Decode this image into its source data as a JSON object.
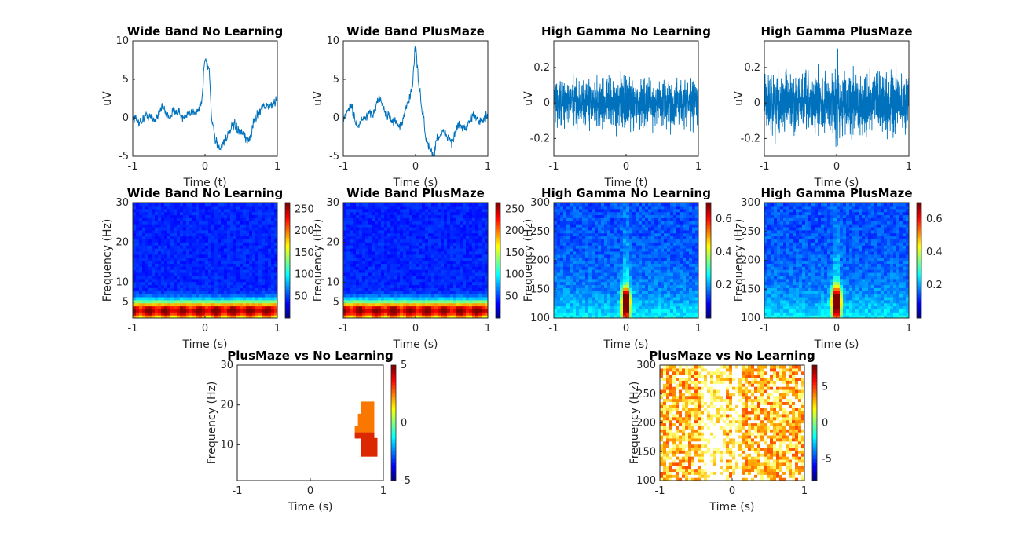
{
  "figure": {
    "panels": [
      {
        "title": "Wide Band No Learning",
        "xlabel": "Time (t)",
        "ylabel": "uV"
      },
      {
        "title": "Wide Band PlusMaze",
        "xlabel": "Time (s)",
        "ylabel": "uV"
      },
      {
        "title": "High Gamma No Learning",
        "xlabel": "Time (t)",
        "ylabel": "uV"
      },
      {
        "title": "High Gamma PlusMaze",
        "xlabel": "Time (s)",
        "ylabel": "uV"
      },
      {
        "title": "Wide Band No Learning",
        "xlabel": "Time (s)",
        "ylabel": "Frequency (Hz)"
      },
      {
        "title": "Wide Band PlusMaze",
        "xlabel": "Time (s)",
        "ylabel": "Frequency (Hz)"
      },
      {
        "title": "High Gamma No Learning",
        "xlabel": "Time (s)",
        "ylabel": "Frequency (Hz)"
      },
      {
        "title": "High Gamma PlusMaze",
        "xlabel": "Time (s)",
        "ylabel": "Frequency (Hz)"
      },
      {
        "title": "PlusMaze vs No Learning",
        "xlabel": "Time (s)",
        "ylabel": "Frequency (Hz)"
      },
      {
        "title": "PlusMaze vs No Learning",
        "xlabel": "Time (s)",
        "ylabel": "Frequency (Hz)"
      }
    ]
  },
  "chart_data": [
    {
      "type": "line",
      "title": "Wide Band No Learning",
      "xlabel": "Time (t)",
      "ylabel": "uV",
      "xlim": [
        -1,
        1
      ],
      "ylim": [
        -5,
        10
      ],
      "xticks": [
        "-1",
        "0",
        "1"
      ],
      "yticks": [
        "-5",
        "0",
        "5",
        "10"
      ],
      "color": "#0072BD",
      "x": [
        -1,
        -0.9,
        -0.8,
        -0.7,
        -0.6,
        -0.5,
        -0.4,
        -0.3,
        -0.2,
        -0.1,
        -0.05,
        0,
        0.05,
        0.1,
        0.15,
        0.2,
        0.3,
        0.4,
        0.5,
        0.6,
        0.7,
        0.8,
        0.9,
        1
      ],
      "values": [
        0,
        -0.5,
        0.3,
        -0.3,
        1.3,
        0.2,
        1,
        0,
        0.5,
        1,
        2,
        7.5,
        6.5,
        -0.5,
        -3,
        -4,
        -2.5,
        -1,
        -2,
        -3,
        0,
        1.5,
        1.5,
        2.2
      ]
    },
    {
      "type": "line",
      "title": "Wide Band PlusMaze",
      "xlabel": "Time (s)",
      "ylabel": "uV",
      "xlim": [
        -1,
        1
      ],
      "ylim": [
        -5,
        10
      ],
      "xticks": [
        "-1",
        "0",
        "1"
      ],
      "yticks": [
        "-5",
        "0",
        "5",
        "10"
      ],
      "color": "#0072BD",
      "x": [
        -1,
        -0.9,
        -0.8,
        -0.7,
        -0.6,
        -0.5,
        -0.4,
        -0.3,
        -0.2,
        -0.1,
        -0.05,
        0,
        0.05,
        0.1,
        0.15,
        0.2,
        0.25,
        0.3,
        0.4,
        0.5,
        0.6,
        0.7,
        0.8,
        0.9,
        1
      ],
      "values": [
        0,
        1.5,
        -1,
        0,
        0.5,
        2.5,
        0.5,
        -0.5,
        -1,
        2,
        4,
        9,
        4,
        0.5,
        -3,
        -4,
        -5,
        -2.5,
        -2,
        -3,
        -1,
        -1.5,
        0.5,
        -0.5,
        0.2
      ]
    },
    {
      "type": "line",
      "title": "High Gamma No Learning",
      "xlabel": "Time (t)",
      "ylabel": "uV",
      "xlim": [
        -1,
        1
      ],
      "ylim": [
        -0.3,
        0.35
      ],
      "xticks": [
        "-1",
        "0",
        "1"
      ],
      "yticks": [
        "-0.2",
        "0",
        "0.2"
      ],
      "color": "#0072BD",
      "noise_amplitude": 0.2
    },
    {
      "type": "line",
      "title": "High Gamma PlusMaze",
      "xlabel": "Time (s)",
      "ylabel": "uV",
      "xlim": [
        -1,
        1
      ],
      "ylim": [
        -0.3,
        0.35
      ],
      "xticks": [
        "-1",
        "0",
        "1"
      ],
      "yticks": [
        "-0.2",
        "0",
        "0.2"
      ],
      "color": "#0072BD",
      "noise_amplitude": 0.25
    },
    {
      "type": "heatmap",
      "title": "Wide Band No Learning",
      "xlabel": "Time (s)",
      "ylabel": "Frequency (Hz)",
      "xlim": [
        -1,
        1
      ],
      "ylim": [
        1,
        30
      ],
      "xticks": [
        "-1",
        "0",
        "1"
      ],
      "yticks": [
        "5",
        "10",
        "20",
        "30"
      ],
      "colorbar": {
        "clim": [
          0,
          265
        ],
        "ticks": [
          "50",
          "100",
          "150",
          "200",
          "250"
        ]
      },
      "colormap": "jet",
      "peak_band_hz": [
        1,
        6
      ]
    },
    {
      "type": "heatmap",
      "title": "Wide Band PlusMaze",
      "xlabel": "Time (s)",
      "ylabel": "Frequency (Hz)",
      "xlim": [
        -1,
        1
      ],
      "ylim": [
        1,
        30
      ],
      "xticks": [
        "-1",
        "0",
        "1"
      ],
      "yticks": [
        "5",
        "10",
        "20",
        "30"
      ],
      "colorbar": {
        "clim": [
          0,
          265
        ],
        "ticks": [
          "50",
          "100",
          "150",
          "200",
          "250"
        ]
      },
      "colormap": "jet",
      "peak_band_hz": [
        1,
        6
      ]
    },
    {
      "type": "heatmap",
      "title": "High Gamma No Learning",
      "xlabel": "Time (s)",
      "ylabel": "Frequency (Hz)",
      "xlim": [
        -1,
        1
      ],
      "ylim": [
        100,
        300
      ],
      "xticks": [
        "-1",
        "0",
        "1"
      ],
      "yticks": [
        "100",
        "150",
        "200",
        "250",
        "300"
      ],
      "colorbar": {
        "clim": [
          0,
          0.7
        ],
        "ticks": [
          "0.2",
          "0.4",
          "0.6"
        ]
      },
      "colormap": "jet",
      "peak": {
        "time": 0,
        "freq_hz": 130
      }
    },
    {
      "type": "heatmap",
      "title": "High Gamma PlusMaze",
      "xlabel": "Time (s)",
      "ylabel": "Frequency (Hz)",
      "xlim": [
        -1,
        1
      ],
      "ylim": [
        100,
        300
      ],
      "xticks": [
        "-1",
        "0",
        "1"
      ],
      "yticks": [
        "100",
        "150",
        "200",
        "250",
        "300"
      ],
      "colorbar": {
        "clim": [
          0,
          0.7
        ],
        "ticks": [
          "0.2",
          "0.4",
          "0.6"
        ]
      },
      "colormap": "jet",
      "peak": {
        "time": 0,
        "freq_hz": 130
      }
    },
    {
      "type": "heatmap",
      "title": "PlusMaze vs No Learning",
      "xlabel": "Time (s)",
      "ylabel": "Frequency (Hz)",
      "xlim": [
        -1,
        1
      ],
      "ylim": [
        1,
        30
      ],
      "xticks": [
        "-1",
        "0",
        "1"
      ],
      "yticks": [
        "10",
        "20",
        "30"
      ],
      "colorbar": {
        "clim": [
          -5,
          5
        ],
        "ticks": [
          "-5",
          "0",
          "5"
        ]
      },
      "colormap": "jet",
      "cluster": {
        "time_range": [
          0.6,
          0.95
        ],
        "freq_range_hz": [
          7,
          21
        ]
      }
    },
    {
      "type": "heatmap",
      "title": "PlusMaze vs No Learning",
      "xlabel": "Time (s)",
      "ylabel": "Frequency (Hz)",
      "xlim": [
        -1,
        1
      ],
      "ylim": [
        100,
        300
      ],
      "xticks": [
        "-1",
        "0",
        "1"
      ],
      "yticks": [
        "100",
        "150",
        "200",
        "250",
        "300"
      ],
      "colorbar": {
        "clim": [
          -8,
          8
        ],
        "ticks": [
          "-5",
          "0",
          "5"
        ]
      },
      "colormap": "hot-masked"
    }
  ]
}
